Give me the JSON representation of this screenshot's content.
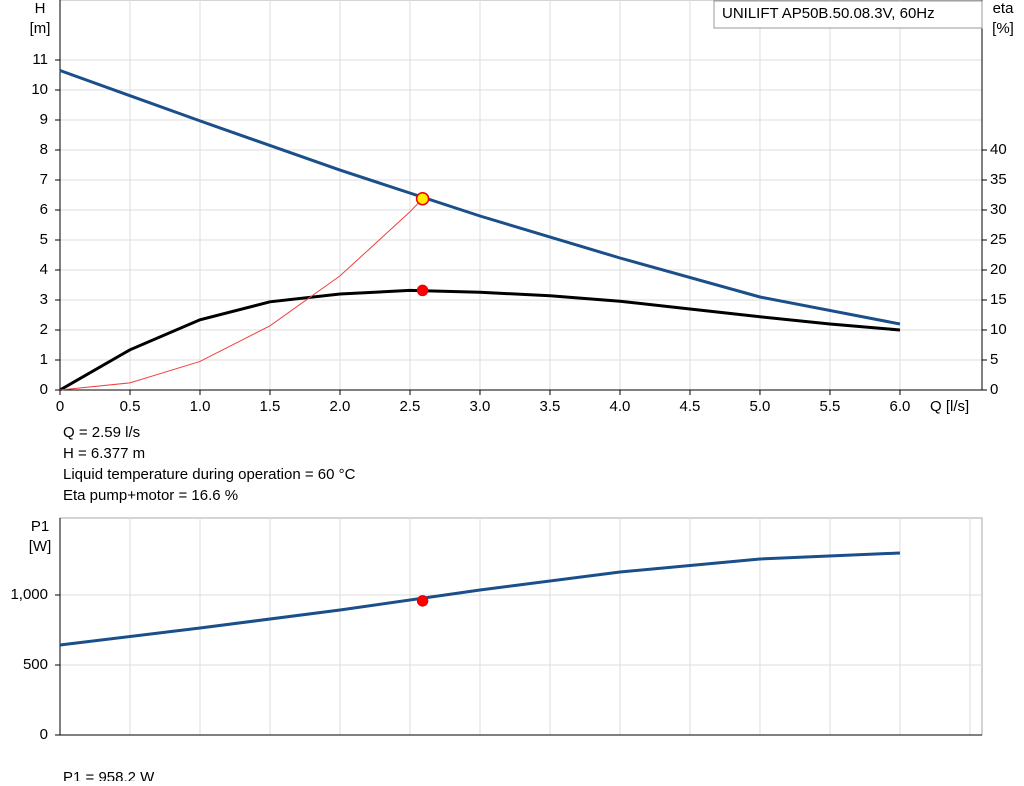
{
  "chart_data": [
    {
      "type": "line",
      "title": "UNILIFT AP50B.50.08.3V, 60Hz",
      "y_label": "H",
      "y_unit": "[m]",
      "y2_label": "eta",
      "y2_unit": "[%]",
      "x_label": "Q [l/s]",
      "xlim": [
        0,
        6.586
      ],
      "xticks": [
        0,
        0.5,
        {
          "value": 1,
          "label": "1.0"
        },
        1.5,
        {
          "value": 2,
          "label": "2.0"
        },
        2.5,
        {
          "value": 3,
          "label": "3.0"
        },
        3.5,
        {
          "value": 4,
          "label": "4.0"
        },
        4.5,
        {
          "value": 5,
          "label": "5.0"
        },
        5.5,
        {
          "value": 6,
          "label": "6.0"
        }
      ],
      "ylim": [
        0,
        13
      ],
      "yticks": [
        0,
        1,
        2,
        3,
        4,
        5,
        6,
        7,
        8,
        9,
        10,
        11
      ],
      "y2lim": [
        0,
        65
      ],
      "y2ticks": [
        0,
        5,
        10,
        15,
        20,
        25,
        30,
        35,
        40
      ],
      "grid": true,
      "series": [
        {
          "name": "H",
          "color": "#1a4f8a",
          "x": [
            0,
            1,
            2,
            3,
            4,
            5,
            6
          ],
          "values": [
            10.65,
            8.97,
            7.33,
            5.8,
            4.4,
            3.1,
            2.2
          ]
        },
        {
          "name": "eta",
          "color": "#000000",
          "axis": "y2",
          "x": [
            0,
            0.5,
            1,
            1.5,
            2,
            2.5,
            3,
            3.5,
            4,
            4.5,
            5,
            5.5,
            6
          ],
          "values": [
            0,
            6.7,
            11.7,
            14.7,
            16,
            16.6,
            16.3,
            15.7,
            14.8,
            13.5,
            12.2,
            11,
            10
          ]
        },
        {
          "name": "system",
          "color": "#f04040",
          "x": [
            0,
            0.5,
            1,
            1.5,
            2,
            2.5,
            2.59
          ],
          "values": [
            0,
            0.238,
            0.951,
            2.139,
            3.803,
            5.942,
            6.377
          ]
        }
      ],
      "points": [
        {
          "x": 2.59,
          "y": 6.377,
          "color": "#ffee00"
        },
        {
          "x": 2.59,
          "y": 16.6,
          "axis": "y2",
          "color": "#ff0000"
        }
      ],
      "annotations": [
        "Q = 2.59 l/s",
        "H = 6.377 m",
        "Liquid temperature during operation = 60 °C",
        "Eta pump+motor = 16.6 %"
      ]
    },
    {
      "type": "line",
      "y_label": "P1",
      "y_unit": "[W]",
      "xlim": [
        0,
        6.586
      ],
      "xgrid": [
        0,
        0.5,
        1,
        1.5,
        2,
        2.5,
        3,
        3.5,
        4,
        4.5,
        5,
        5.5,
        6,
        6.5
      ],
      "ylim": [
        0,
        1550
      ],
      "yticks": [
        0,
        {
          "value": 500,
          "label": "500"
        },
        {
          "value": 1000,
          "label": "1,000"
        }
      ],
      "grid": true,
      "series": [
        {
          "name": "P1",
          "color": "#1a4f8a",
          "x": [
            0,
            1,
            2,
            3,
            4,
            5,
            6
          ],
          "values": [
            643,
            764,
            893,
            1036,
            1164,
            1257,
            1300
          ]
        }
      ],
      "points": [
        {
          "x": 2.59,
          "y": 958.2,
          "color": "#ff0000"
        }
      ],
      "annotations": [
        "P1 = 958.2 W"
      ]
    }
  ]
}
